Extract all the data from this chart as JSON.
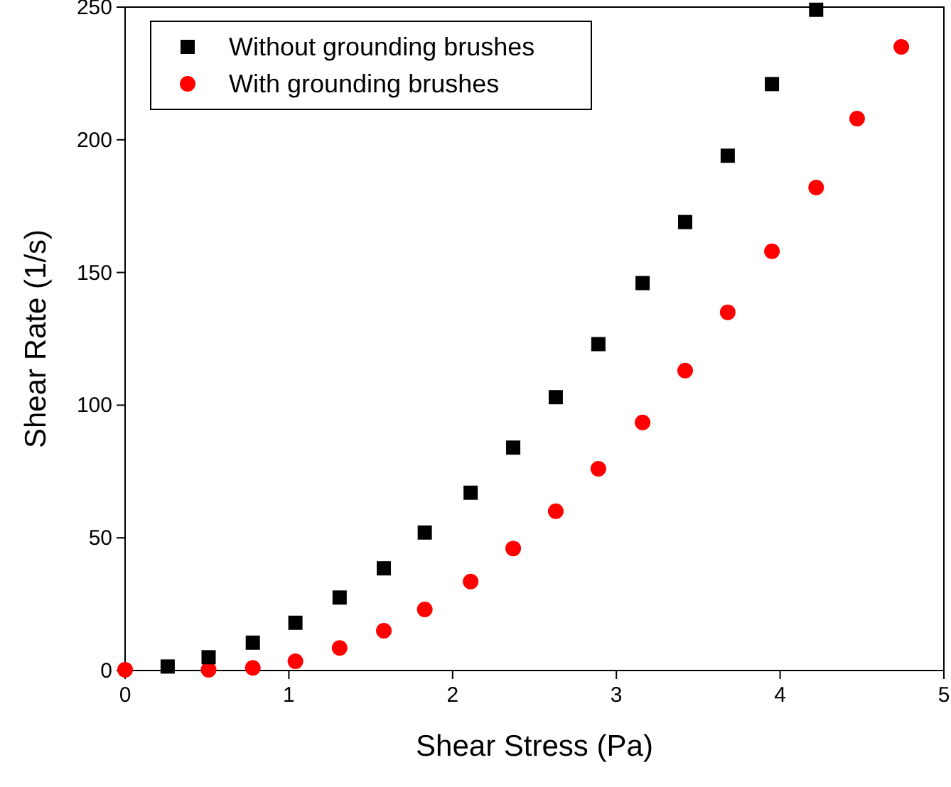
{
  "chart_data": {
    "type": "scatter",
    "xlabel": "Shear Stress (Pa)",
    "ylabel": "Shear Rate (1/s)",
    "xlim": [
      0,
      5
    ],
    "ylim": [
      0,
      250
    ],
    "xticks": [
      0,
      1,
      2,
      3,
      4,
      5
    ],
    "yticks": [
      0,
      50,
      100,
      150,
      200,
      250
    ],
    "grid": false,
    "legend": "top left",
    "series": [
      {
        "name": "Without grounding brushes",
        "color": "#000000",
        "marker": "square",
        "x": [
          0.26,
          0.51,
          0.78,
          1.04,
          1.31,
          1.58,
          1.83,
          2.11,
          2.37,
          2.63,
          2.89,
          3.16,
          3.42,
          3.68,
          3.95,
          4.22
        ],
        "values": [
          1.5,
          5,
          10.5,
          18,
          27.5,
          38.5,
          52,
          67,
          84,
          103,
          123,
          146,
          169,
          194,
          221,
          249
        ]
      },
      {
        "name": "With grounding brushes",
        "color": "#ff0000",
        "marker": "circle",
        "x": [
          0,
          0.51,
          0.78,
          1.04,
          1.31,
          1.58,
          1.83,
          2.11,
          2.37,
          2.63,
          2.89,
          3.16,
          3.42,
          3.68,
          3.95,
          4.22,
          4.47,
          4.74
        ],
        "values": [
          0.3,
          0.3,
          1,
          3.5,
          8.5,
          15,
          23,
          33.5,
          46,
          60,
          76,
          93.5,
          113,
          135,
          158,
          182,
          208,
          235
        ]
      }
    ]
  }
}
